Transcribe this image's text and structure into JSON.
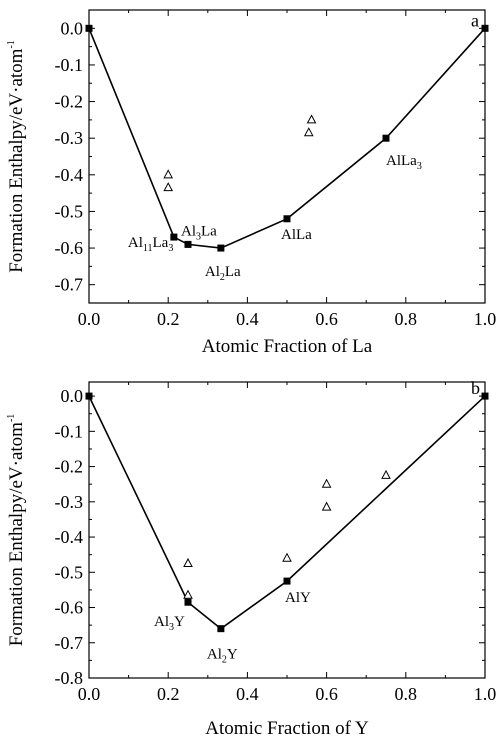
{
  "chart_data": [
    {
      "type": "scatter",
      "panel": "a",
      "xlabel": "Atomic Fraction of La",
      "ylabel": "Formation Enthalpy/eV·atom",
      "ylabel_superscript": "-1",
      "xlim": [
        0.0,
        1.0
      ],
      "ylim": [
        -0.75,
        0.05
      ],
      "x_ticks": [
        0.0,
        0.2,
        0.4,
        0.6,
        0.8,
        1.0
      ],
      "x_tick_labels": [
        "0.0",
        "0.2",
        "0.4",
        "0.6",
        "0.8",
        "1.0"
      ],
      "y_ticks": [
        0.0,
        -0.1,
        -0.2,
        -0.3,
        -0.4,
        -0.5,
        -0.6,
        -0.7
      ],
      "y_tick_labels": [
        "0.0",
        "-0.1",
        "-0.2",
        "-0.3",
        "-0.4",
        "-0.5",
        "-0.6",
        "-0.7"
      ],
      "series": [
        {
          "marker": "filled-square",
          "connected": true,
          "points": [
            {
              "x": 0.0,
              "y": 0.0
            },
            {
              "x": 0.2143,
              "y": -0.57
            },
            {
              "x": 0.25,
              "y": -0.59
            },
            {
              "x": 0.333,
              "y": -0.6
            },
            {
              "x": 0.5,
              "y": -0.52
            },
            {
              "x": 0.75,
              "y": -0.3
            },
            {
              "x": 1.0,
              "y": 0.0
            }
          ]
        },
        {
          "marker": "open-triangle",
          "connected": false,
          "points": [
            {
              "x": 0.2,
              "y": -0.4
            },
            {
              "x": 0.2,
              "y": -0.435
            },
            {
              "x": 0.555,
              "y": -0.285
            },
            {
              "x": 0.562,
              "y": -0.25
            }
          ]
        }
      ],
      "annotations": [
        {
          "parts": [
            {
              "t": "Al",
              "sub": false
            },
            {
              "t": "11",
              "sub": true
            },
            {
              "t": "La",
              "sub": false
            },
            {
              "t": "3",
              "sub": true
            }
          ],
          "x": 0.2143,
          "y": -0.57
        },
        {
          "parts": [
            {
              "t": "Al",
              "sub": false
            },
            {
              "t": "3",
              "sub": true
            },
            {
              "t": "La",
              "sub": false
            }
          ],
          "x": 0.25,
          "y": -0.59
        },
        {
          "parts": [
            {
              "t": "Al",
              "sub": false
            },
            {
              "t": "2",
              "sub": true
            },
            {
              "t": "La",
              "sub": false
            }
          ],
          "x": 0.333,
          "y": -0.6
        },
        {
          "parts": [
            {
              "t": "AlLa",
              "sub": false
            }
          ],
          "x": 0.5,
          "y": -0.52
        },
        {
          "parts": [
            {
              "t": "AlLa",
              "sub": false
            },
            {
              "t": "3",
              "sub": true
            }
          ],
          "x": 0.75,
          "y": -0.3
        },
        {
          "parts": [
            {
              "t": "a",
              "sub": false
            }
          ],
          "x": 1.0,
          "y": 0.0
        }
      ]
    },
    {
      "type": "scatter",
      "panel": "b",
      "xlabel": "Atomic Fraction of Y",
      "ylabel": "Formation Enthalpy/eV·atom",
      "ylabel_superscript": "-1",
      "xlim": [
        0.0,
        1.0
      ],
      "ylim": [
        -0.8,
        0.04
      ],
      "x_ticks": [
        0.0,
        0.2,
        0.4,
        0.6,
        0.8,
        1.0
      ],
      "x_tick_labels": [
        "0.0",
        "0.2",
        "0.4",
        "0.6",
        "0.8",
        "1.0"
      ],
      "y_ticks": [
        0.0,
        -0.1,
        -0.2,
        -0.3,
        -0.4,
        -0.5,
        -0.6,
        -0.7,
        -0.8
      ],
      "y_tick_labels": [
        "0.0",
        "-0.1",
        "-0.2",
        "-0.3",
        "-0.4",
        "-0.5",
        "-0.6",
        "-0.7",
        "-0.8"
      ],
      "series": [
        {
          "marker": "filled-square",
          "connected": true,
          "points": [
            {
              "x": 0.0,
              "y": 0.0
            },
            {
              "x": 0.25,
              "y": -0.585
            },
            {
              "x": 0.333,
              "y": -0.66
            },
            {
              "x": 0.5,
              "y": -0.525
            },
            {
              "x": 1.0,
              "y": 0.0
            }
          ]
        },
        {
          "marker": "open-triangle",
          "connected": false,
          "points": [
            {
              "x": 0.25,
              "y": -0.475
            },
            {
              "x": 0.25,
              "y": -0.565
            },
            {
              "x": 0.5,
              "y": -0.46
            },
            {
              "x": 0.6,
              "y": -0.25
            },
            {
              "x": 0.6,
              "y": -0.315
            },
            {
              "x": 0.75,
              "y": -0.225
            }
          ]
        }
      ],
      "annotations": [
        {
          "parts": [
            {
              "t": "Al",
              "sub": false
            },
            {
              "t": "3",
              "sub": true
            },
            {
              "t": "Y",
              "sub": false
            }
          ],
          "x": 0.25,
          "y": -0.585
        },
        {
          "parts": [
            {
              "t": "Al",
              "sub": false
            },
            {
              "t": "2",
              "sub": true
            },
            {
              "t": "Y",
              "sub": false
            }
          ],
          "x": 0.333,
          "y": -0.66
        },
        {
          "parts": [
            {
              "t": "AlY",
              "sub": false
            }
          ],
          "x": 0.5,
          "y": -0.525
        },
        {
          "parts": [
            {
              "t": "b",
              "sub": false
            }
          ],
          "x": 1.0,
          "y": 0.0
        }
      ]
    }
  ]
}
